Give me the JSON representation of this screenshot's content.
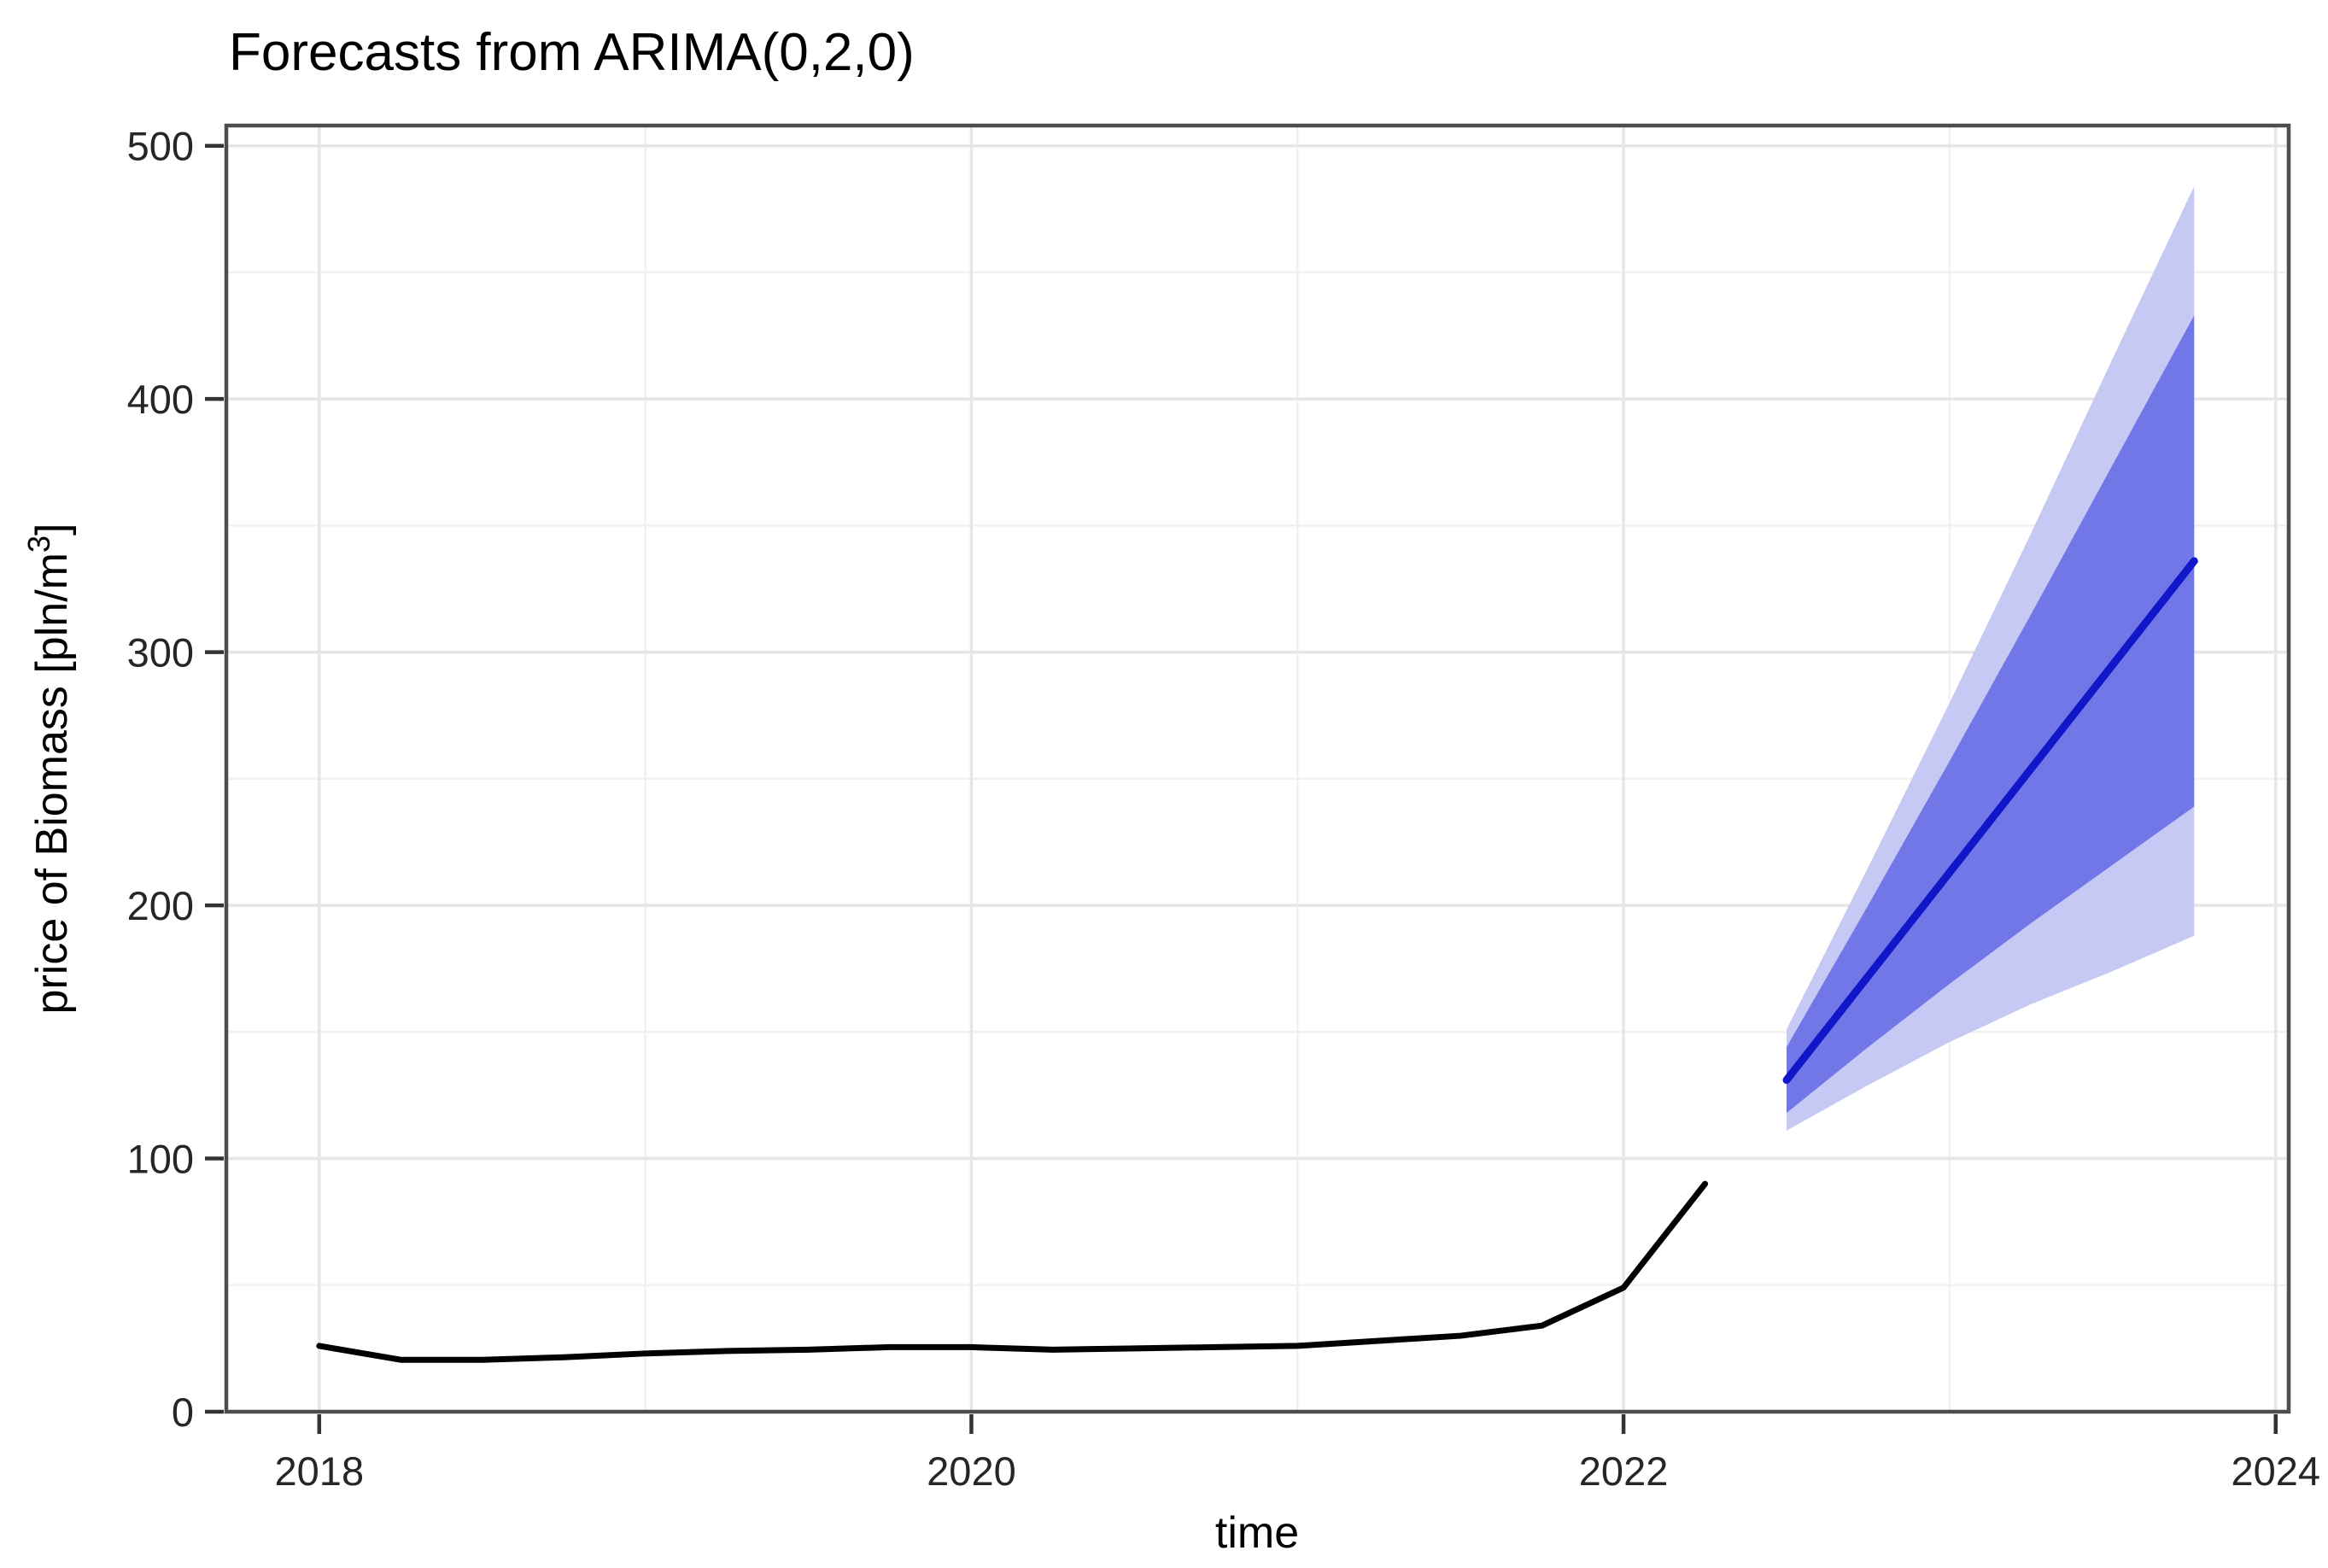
{
  "title": "Forecasts from ARIMA(0,2,0)",
  "x_axis": {
    "label": "time",
    "ticks": [
      2018,
      2020,
      2022,
      2024
    ],
    "minor_ticks": [
      2019,
      2021,
      2023
    ]
  },
  "y_axis": {
    "label_prefix": "price of Biomass [pln/m",
    "label_sup": "3",
    "label_suffix": "]",
    "ticks": [
      0,
      100,
      200,
      300,
      400,
      500
    ],
    "minor_ticks": [
      50,
      150,
      250,
      350,
      450
    ]
  },
  "colors": {
    "observed_line": "#000000",
    "forecast_line": "#1117C9",
    "band_80": "#7277E8",
    "band_95": "#C6C9F3",
    "grid_major": "#E6E6E6",
    "grid_minor": "#F1F1F1",
    "panel_border": "#4D4D4D",
    "tick": "#333333"
  },
  "chart_data": {
    "type": "line",
    "title": "Forecasts from ARIMA(0,2,0)",
    "xlabel": "time",
    "ylabel": "price of Biomass [pln/m3]",
    "xlim": [
      2017.715,
      2024.04
    ],
    "ylim": [
      0,
      508
    ],
    "grid": "on",
    "legend": "none",
    "series": [
      {
        "name": "observed",
        "type": "line",
        "color": "#000000",
        "x": [
          2018.0,
          2018.25,
          2018.5,
          2018.75,
          2019.0,
          2019.25,
          2019.5,
          2019.75,
          2020.0,
          2020.25,
          2020.5,
          2020.75,
          2021.0,
          2021.25,
          2021.5,
          2021.75,
          2022.0,
          2022.25
        ],
        "y": [
          26,
          20.5,
          20.5,
          21.5,
          23,
          24,
          24.5,
          25.5,
          25.5,
          24.5,
          25,
          25.5,
          26,
          28,
          30,
          34,
          49,
          90
        ]
      },
      {
        "name": "forecast mean",
        "type": "line",
        "color": "#1117C9",
        "x": [
          2022.5,
          2022.75,
          2023.0,
          2023.25,
          2023.5,
          2023.75
        ],
        "y": [
          131,
          172,
          213,
          254,
          295,
          336
        ]
      }
    ],
    "bands": [
      {
        "name": "95% prediction interval",
        "color": "#C6C9F3",
        "x": [
          2022.5,
          2022.75,
          2023.0,
          2023.25,
          2023.5,
          2023.75
        ],
        "lo": [
          111,
          129,
          146,
          161,
          174,
          188
        ],
        "hi": [
          151,
          215,
          280,
          347,
          416,
          484
        ]
      },
      {
        "name": "80% prediction interval",
        "color": "#7277E8",
        "x": [
          2022.5,
          2022.75,
          2023.0,
          2023.25,
          2023.5,
          2023.75
        ],
        "lo": [
          118,
          144,
          169,
          193,
          216,
          239
        ],
        "hi": [
          144,
          200,
          257,
          315,
          374,
          433
        ]
      }
    ]
  }
}
